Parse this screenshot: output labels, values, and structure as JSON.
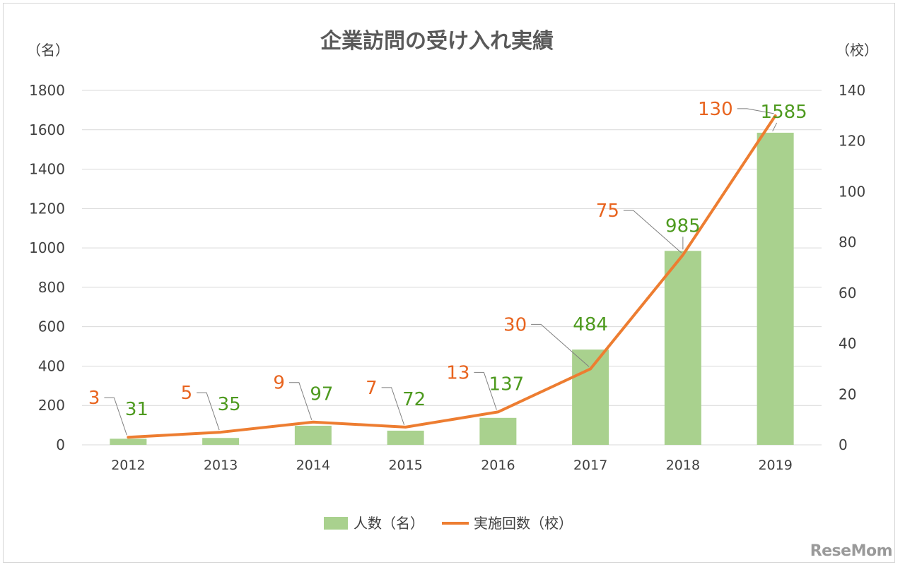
{
  "chart_data": {
    "type": "bar",
    "title": "企業訪問の受け入れ実績",
    "left_axis_unit": "（名）",
    "right_axis_unit": "（校）",
    "categories": [
      "2012",
      "2013",
      "2014",
      "2015",
      "2016",
      "2017",
      "2018",
      "2019"
    ],
    "left_ylim": [
      0,
      1800
    ],
    "left_ticks": [
      "0",
      "200",
      "400",
      "600",
      "800",
      "1000",
      "1200",
      "1400",
      "1600",
      "1800"
    ],
    "right_ylim": [
      0,
      140
    ],
    "right_ticks": [
      "0",
      "20",
      "40",
      "60",
      "80",
      "100",
      "120",
      "140"
    ],
    "grid": true,
    "legend_position": "bottom",
    "series": [
      {
        "name": "人数（名）",
        "type": "bar",
        "axis": "left",
        "color": "#a9d18e",
        "values": [
          31,
          35,
          97,
          72,
          137,
          484,
          985,
          1585
        ]
      },
      {
        "name": "実施回数（校）",
        "type": "line",
        "axis": "right",
        "color": "#ed7d31",
        "values": [
          3,
          5,
          9,
          7,
          13,
          30,
          75,
          130
        ]
      }
    ]
  },
  "watermark": "ReseMom"
}
